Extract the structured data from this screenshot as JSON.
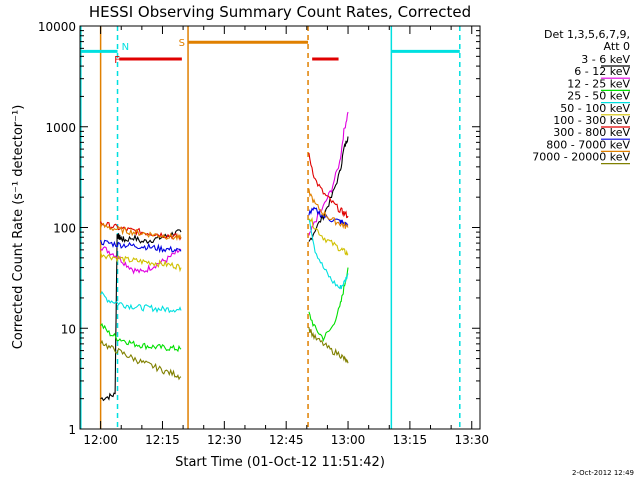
{
  "chart_data": {
    "type": "line",
    "title": "HESSI Observing Summary Count Rates, Corrected",
    "xlabel": "Start Time (01-Oct-12 11:51:42)",
    "ylabel": "Corrected Count Rate (s⁻¹ detector⁻¹)",
    "y_scale": "log",
    "ylim": [
      1,
      10000
    ],
    "xlim_minutes": [
      -5,
      92
    ],
    "x_ticks": [
      {
        "label": "12:00",
        "min": 0
      },
      {
        "label": "12:15",
        "min": 15
      },
      {
        "label": "12:30",
        "min": 30
      },
      {
        "label": "12:45",
        "min": 45
      },
      {
        "label": "13:00",
        "min": 60
      },
      {
        "label": "13:15",
        "min": 75
      },
      {
        "label": "13:30",
        "min": 90
      }
    ],
    "y_ticks": [
      {
        "label": "1",
        "value": 1
      },
      {
        "label": "10",
        "value": 10
      },
      {
        "label": "100",
        "value": 100
      },
      {
        "label": "1000",
        "value": 1000
      },
      {
        "label": "10000",
        "value": 10000
      }
    ],
    "legend": {
      "title_line1": "Det 1,3,5,6,7,9,",
      "title_line2": "Att 0",
      "position": "top-right"
    },
    "series": [
      {
        "name": "3 - 6 keV",
        "color": "#000000",
        "seg1": {
          "x": [
            0,
            2,
            3.5,
            4,
            4.5,
            5,
            6,
            8,
            10,
            12,
            14,
            16,
            18,
            19.5
          ],
          "y": [
            2,
            2.1,
            2.2,
            85,
            80,
            78,
            75,
            80,
            72,
            75,
            78,
            82,
            88,
            90
          ]
        },
        "seg2": {
          "x": [
            50.5,
            52,
            54,
            56,
            58,
            59,
            60
          ],
          "y": [
            70,
            95,
            130,
            200,
            350,
            600,
            800
          ]
        }
      },
      {
        "name": "6 - 12 keV",
        "color": "#e000e0",
        "seg1": {
          "x": [
            0,
            2,
            4,
            6,
            8,
            10,
            12,
            14,
            16,
            18,
            19.5
          ],
          "y": [
            65,
            58,
            52,
            44,
            38,
            36,
            40,
            44,
            48,
            55,
            60
          ]
        },
        "seg2": {
          "x": [
            50.5,
            52,
            54,
            56,
            58,
            59,
            60
          ],
          "y": [
            80,
            115,
            160,
            240,
            450,
            900,
            1400
          ]
        }
      },
      {
        "name": "12 - 25 keV",
        "color": "#00e000",
        "seg1": {
          "x": [
            0,
            2,
            4,
            6,
            8,
            10,
            12,
            14,
            16,
            18,
            19.5
          ],
          "y": [
            11,
            9,
            8,
            7.5,
            7,
            6.8,
            6.6,
            6.5,
            6.4,
            6.3,
            6.2
          ]
        },
        "seg2": {
          "x": [
            50.5,
            52,
            54,
            56,
            58,
            59,
            60
          ],
          "y": [
            14,
            10,
            8,
            10,
            16,
            25,
            40
          ]
        }
      },
      {
        "name": "25 - 50 keV",
        "color": "#00e0e0",
        "seg1": {
          "x": [
            0,
            2,
            4,
            6,
            8,
            10,
            12,
            14,
            16,
            18,
            19.5
          ],
          "y": [
            22,
            19,
            18,
            17,
            16.5,
            16,
            16,
            15.5,
            15.5,
            15.5,
            15
          ]
        },
        "seg2": {
          "x": [
            50.5,
            52,
            54,
            56,
            58,
            59,
            60
          ],
          "y": [
            130,
            60,
            40,
            30,
            25,
            28,
            35
          ]
        }
      },
      {
        "name": "50 - 100 keV",
        "color": "#d0c000",
        "seg1": {
          "x": [
            0,
            2,
            4,
            6,
            8,
            10,
            12,
            14,
            16,
            18,
            19.5
          ],
          "y": [
            55,
            52,
            50,
            48,
            47,
            46,
            45,
            44,
            43,
            42,
            40
          ]
        },
        "seg2": {
          "x": [
            50.5,
            52,
            54,
            56,
            58,
            59,
            60
          ],
          "y": [
            130,
            100,
            80,
            70,
            62,
            58,
            55
          ]
        }
      },
      {
        "name": "100 - 300 keV",
        "color": "#e00000",
        "seg1": {
          "x": [
            0,
            2,
            4,
            6,
            8,
            10,
            12,
            14,
            16,
            18,
            19.5
          ],
          "y": [
            110,
            105,
            100,
            96,
            93,
            90,
            88,
            86,
            84,
            82,
            80
          ]
        },
        "seg2": {
          "x": [
            50.5,
            52,
            54,
            56,
            58,
            59,
            60
          ],
          "y": [
            520,
            300,
            220,
            180,
            150,
            140,
            130
          ]
        }
      },
      {
        "name": "300 - 800 keV",
        "color": "#0000e0",
        "seg1": {
          "x": [
            0,
            2,
            4,
            6,
            8,
            10,
            12,
            14,
            16,
            18,
            19.5
          ],
          "y": [
            72,
            70,
            68,
            67,
            66,
            65,
            64,
            62,
            61,
            60,
            58
          ]
        },
        "seg2": {
          "x": [
            50.5,
            52,
            54,
            56,
            58,
            59,
            60
          ],
          "y": [
            140,
            150,
            130,
            120,
            115,
            110,
            105
          ]
        }
      },
      {
        "name": "800 - 7000 keV",
        "color": "#e08000",
        "seg1": {
          "x": [
            0,
            2,
            4,
            6,
            8,
            10,
            12,
            14,
            16,
            18,
            19.5
          ],
          "y": [
            105,
            100,
            96,
            93,
            90,
            88,
            86,
            84,
            82,
            80,
            78
          ]
        },
        "seg2": {
          "x": [
            50.5,
            52,
            54,
            56,
            58,
            59,
            60
          ],
          "y": [
            230,
            170,
            140,
            120,
            110,
            105,
            100
          ]
        }
      },
      {
        "name": "7000 - 20000 keV",
        "color": "#808000",
        "seg1": {
          "x": [
            0,
            2,
            4,
            6,
            8,
            10,
            12,
            14,
            16,
            18,
            19.5
          ],
          "y": [
            7.5,
            6.5,
            6,
            5.5,
            5,
            4.6,
            4.3,
            4,
            3.7,
            3.5,
            3.3
          ]
        },
        "seg2": {
          "x": [
            50.5,
            52,
            54,
            56,
            58,
            59,
            60
          ],
          "y": [
            10,
            8,
            7,
            6,
            5.5,
            5,
            4.5
          ]
        }
      }
    ],
    "markers": [
      {
        "id": "marker-cyan-left-solid",
        "min": -4.8,
        "color": "#00e0e0",
        "style": "solid"
      },
      {
        "id": "marker-cyan-dashed-1",
        "min": 4.1,
        "color": "#00e0e0",
        "style": "dashed"
      },
      {
        "id": "marker-orange-solid-1",
        "min": 0,
        "color": "#e08000",
        "style": "solid"
      },
      {
        "id": "marker-orange-solid-2",
        "min": 21.2,
        "color": "#e08000",
        "style": "solid"
      },
      {
        "id": "marker-orange-dashed-1",
        "min": 50.3,
        "color": "#e08000",
        "style": "dashed"
      },
      {
        "id": "marker-cyan-solid-2",
        "min": 70.5,
        "color": "#00e0e0",
        "style": "solid"
      },
      {
        "id": "marker-cyan-dashed-2",
        "min": 87.1,
        "color": "#00e0e0",
        "style": "dashed"
      }
    ],
    "bars": [
      {
        "id": "bar-cyan-1",
        "x0": -5,
        "x1": 4.1,
        "value": 5600,
        "color": "#00e0e0"
      },
      {
        "id": "bar-red-1",
        "x0": 4.5,
        "x1": 19.7,
        "value": 4700,
        "color": "#e00000"
      },
      {
        "id": "bar-orange-1",
        "x0": 21.2,
        "x1": 50.3,
        "value": 6900,
        "color": "#e08000"
      },
      {
        "id": "bar-red-2",
        "x0": 51.3,
        "x1": 57.7,
        "value": 4700,
        "color": "#e00000"
      },
      {
        "id": "bar-cyan-2",
        "x0": 70.5,
        "x1": 87.1,
        "value": 5600,
        "color": "#00e0e0"
      }
    ],
    "flag_labels": [
      {
        "id": "flag-F",
        "text": "F",
        "min": 4.0,
        "value": 4700,
        "color": "#e00000"
      },
      {
        "id": "flag-N",
        "text": "N",
        "min": 6.0,
        "value": 6300,
        "color": "#00e0e0"
      },
      {
        "id": "flag-S",
        "text": "S",
        "min": 19.7,
        "value": 6900,
        "color": "#e08000"
      }
    ]
  },
  "footer": {
    "date": "2-Oct-2012 12:49"
  }
}
